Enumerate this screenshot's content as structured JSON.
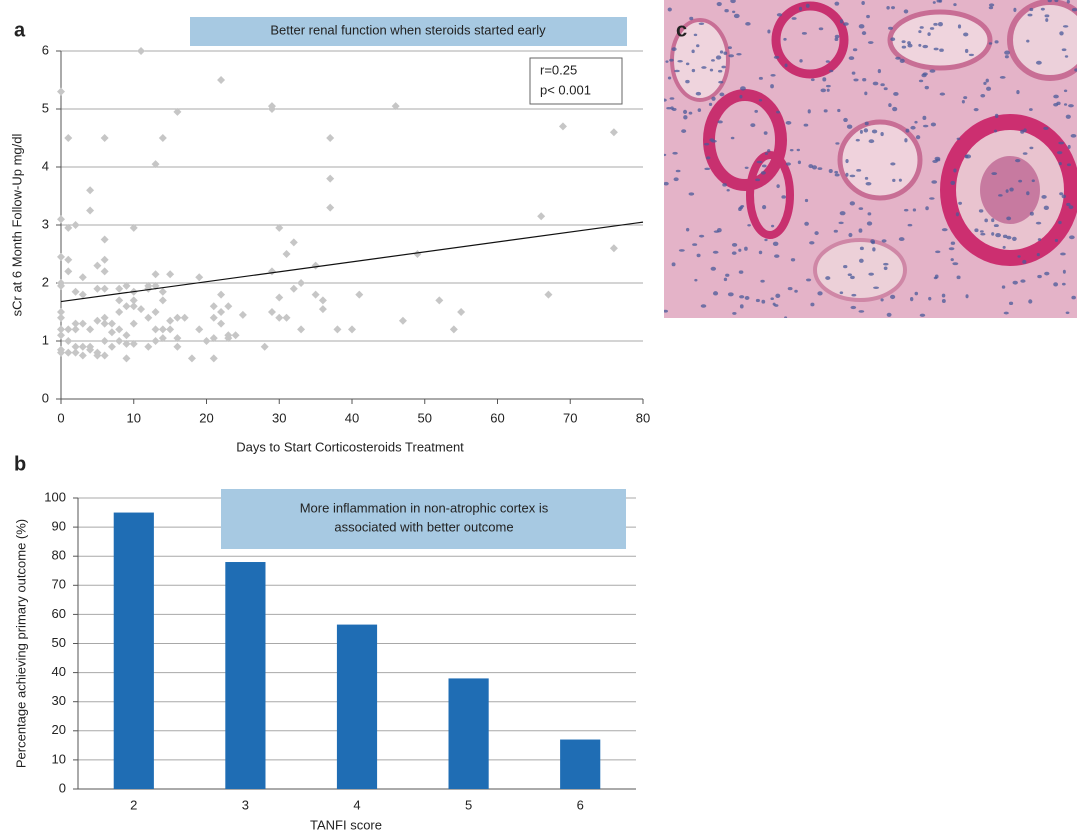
{
  "chart_data": [
    {
      "type": "scatter",
      "panel_label": "a",
      "annotation": "Better renal function when steroids started early",
      "stats": [
        "r=0.25",
        "p< 0.001"
      ],
      "xlabel": "Days to Start Corticosteroids Treatment",
      "ylabel": "sCr at 6 Month Follow-Up mg/dl",
      "color": "#c6c6c6",
      "x": [
        0,
        0,
        0,
        0,
        0,
        0,
        0,
        0,
        0,
        0,
        0,
        1,
        1,
        1,
        1,
        1,
        1,
        1,
        2,
        2,
        2,
        2,
        2,
        2,
        3,
        3,
        3,
        3,
        3,
        4,
        4,
        4,
        4,
        4,
        5,
        5,
        5,
        5,
        5,
        6,
        6,
        6,
        6,
        6,
        6,
        6,
        6,
        6,
        7,
        7,
        7,
        8,
        8,
        8,
        8,
        8,
        9,
        9,
        9,
        9,
        9,
        10,
        10,
        10,
        10,
        10,
        10,
        11,
        11,
        12,
        12,
        12,
        12,
        13,
        13,
        13,
        13,
        13,
        13,
        14,
        14,
        14,
        14,
        14,
        15,
        15,
        15,
        16,
        16,
        16,
        16,
        17,
        18,
        19,
        19,
        20,
        21,
        21,
        21,
        21,
        22,
        22,
        22,
        22,
        23,
        23,
        23,
        24,
        25,
        28,
        29,
        29,
        29,
        29,
        30,
        30,
        30,
        31,
        31,
        32,
        32,
        33,
        33,
        35,
        35,
        36,
        36,
        37,
        37,
        37,
        38,
        40,
        41,
        46,
        47,
        49,
        52,
        54,
        55,
        66,
        67,
        69,
        76,
        76
      ],
      "values": [
        5.3,
        3.1,
        2.45,
        2.0,
        1.95,
        1.5,
        1.4,
        1.2,
        1.1,
        0.85,
        0.8,
        4.5,
        2.95,
        2.4,
        2.2,
        1.2,
        1.0,
        0.8,
        3.0,
        1.85,
        1.3,
        1.2,
        0.9,
        0.8,
        1.8,
        2.1,
        1.3,
        0.9,
        0.75,
        3.6,
        3.25,
        1.2,
        0.85,
        0.9,
        2.3,
        1.9,
        1.35,
        0.8,
        0.75,
        4.5,
        2.75,
        2.4,
        2.2,
        1.9,
        1.4,
        1.3,
        1.0,
        0.75,
        1.3,
        1.15,
        0.9,
        1.9,
        1.7,
        1.5,
        1.2,
        1.0,
        1.95,
        1.6,
        1.1,
        0.95,
        0.7,
        2.95,
        1.85,
        1.7,
        1.6,
        1.3,
        0.95,
        6.0,
        1.55,
        1.95,
        1.9,
        1.4,
        0.9,
        4.05,
        2.15,
        1.95,
        1.5,
        1.2,
        1.0,
        4.5,
        1.85,
        1.7,
        1.2,
        1.05,
        2.15,
        1.35,
        1.2,
        4.95,
        1.4,
        1.05,
        0.9,
        1.4,
        0.7,
        2.1,
        1.2,
        1.0,
        1.6,
        1.4,
        1.05,
        0.7,
        5.5,
        1.8,
        1.5,
        1.3,
        1.6,
        1.1,
        1.05,
        1.1,
        1.45,
        0.9,
        5.05,
        5.0,
        2.2,
        1.5,
        2.95,
        1.75,
        1.4,
        2.5,
        1.4,
        2.7,
        1.9,
        2.0,
        1.2,
        2.3,
        1.8,
        1.55,
        1.7,
        4.5,
        3.8,
        3.3,
        1.2,
        1.2,
        1.8,
        5.05,
        1.35,
        2.5,
        1.7,
        1.2,
        1.5,
        3.15,
        1.8,
        4.7,
        4.6,
        2.6
      ],
      "trendline": {
        "x": [
          0,
          80
        ],
        "y": [
          1.68,
          3.05
        ]
      },
      "xlim": [
        0,
        80
      ],
      "xticks": [
        0,
        10,
        20,
        30,
        40,
        50,
        60,
        70,
        80
      ],
      "ylim": [
        0,
        6
      ],
      "yticks": [
        0,
        1,
        2,
        3,
        4,
        5,
        6
      ],
      "grid": true
    },
    {
      "type": "bar",
      "panel_label": "b",
      "annotation": [
        "More inflammation in non-atrophic cortex is",
        "associated with better outcome"
      ],
      "xlabel": "TANFI score",
      "ylabel": "Percentage achieving primary outcome (%)",
      "color": "#1f6db4",
      "categories": [
        "2",
        "3",
        "4",
        "5",
        "6"
      ],
      "values": [
        95,
        78,
        56.5,
        38,
        17
      ],
      "ylim": [
        0,
        100
      ],
      "yticks": [
        0,
        10,
        20,
        30,
        40,
        50,
        60,
        70,
        80,
        90,
        100
      ],
      "grid": true
    }
  ],
  "image": {
    "panel_label": "c"
  }
}
